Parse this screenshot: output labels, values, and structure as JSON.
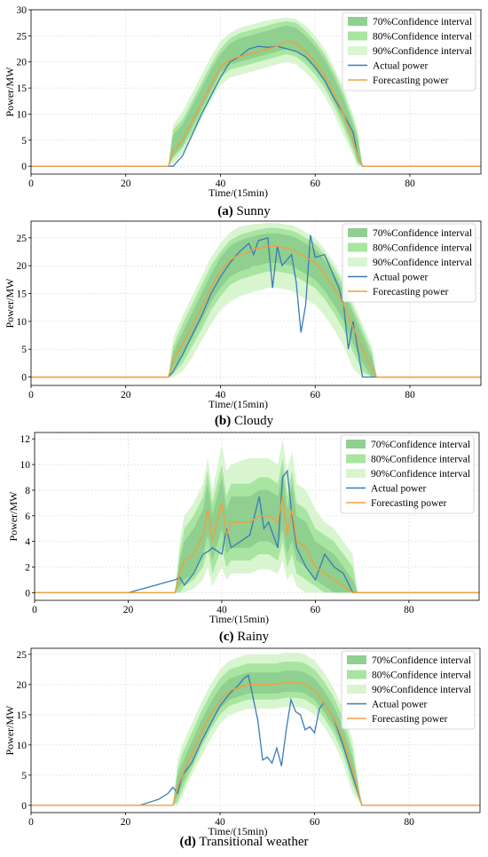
{
  "colors": {
    "ci70": "#8fcf8f",
    "ci80": "#a8e5a0",
    "ci90": "#d8f5d0",
    "actual": "#3b7ab8",
    "forecast": "#f0a040",
    "grid": "#e2e2e2",
    "axis": "#000000"
  },
  "chart_data": [
    {
      "type": "area",
      "caption_letter": "(a)",
      "caption_text": " Sunny",
      "xlabel": "Time/(15min)",
      "ylabel": "Power/MW",
      "xlim": [
        0,
        95
      ],
      "ylim": [
        -1.5,
        30
      ],
      "xticks": [
        0,
        20,
        40,
        60,
        80
      ],
      "yticks": [
        0,
        5,
        10,
        15,
        20,
        25,
        30
      ],
      "grid": true,
      "legend_position": "top-right",
      "legend": [
        "70%Confidence interval",
        "80%Confidence interval",
        "90%Confidence interval",
        "Actual power",
        "Forecasting power"
      ],
      "x": [
        0,
        29,
        30,
        32,
        34,
        36,
        38,
        40,
        42,
        44,
        46,
        48,
        50,
        52,
        54,
        56,
        58,
        60,
        62,
        64,
        66,
        68,
        69,
        70,
        95
      ],
      "forecast": [
        0,
        0,
        3.0,
        5.0,
        8.5,
        12.0,
        15.5,
        19.0,
        20.5,
        21.0,
        21.5,
        22.0,
        22.5,
        23.0,
        24.0,
        23.5,
        22.0,
        20.0,
        17.5,
        14.0,
        10.0,
        5.0,
        2.0,
        0,
        0
      ],
      "actual": [
        0,
        0,
        0,
        2.0,
        6.0,
        10.0,
        13.5,
        17.0,
        20.0,
        21.0,
        22.5,
        23.0,
        22.8,
        23.0,
        22.5,
        22.0,
        21.0,
        19.0,
        16.5,
        13.0,
        10.0,
        6.5,
        2.0,
        0,
        0
      ],
      "ci70_lower": [
        0,
        0,
        2.0,
        4.0,
        7.5,
        11.0,
        14.5,
        18.0,
        19.5,
        20.0,
        20.5,
        21.0,
        21.5,
        22.0,
        22.5,
        22.0,
        20.5,
        18.5,
        16.0,
        12.5,
        8.5,
        4.0,
        1.0,
        0,
        0
      ],
      "ci70_upper": [
        0,
        0,
        6.0,
        8.0,
        11.5,
        15.0,
        18.5,
        21.5,
        23.5,
        24.5,
        25.0,
        25.5,
        26.0,
        26.5,
        27.0,
        26.5,
        25.0,
        23.0,
        20.5,
        17.0,
        13.0,
        8.0,
        5.0,
        0,
        0
      ],
      "ci80_lower": [
        0,
        0,
        1.5,
        3.5,
        6.5,
        10.0,
        13.5,
        17.0,
        18.5,
        19.0,
        19.5,
        20.0,
        20.5,
        21.0,
        21.5,
        21.0,
        19.5,
        17.5,
        15.0,
        11.5,
        7.5,
        3.0,
        0.5,
        0,
        0
      ],
      "ci80_upper": [
        0,
        0,
        7.0,
        9.0,
        12.5,
        16.0,
        19.5,
        22.5,
        24.5,
        25.5,
        26.0,
        26.5,
        27.0,
        27.5,
        27.8,
        27.5,
        26.0,
        24.0,
        21.5,
        18.0,
        14.0,
        9.0,
        6.0,
        0,
        0
      ],
      "ci90_lower": [
        0,
        0,
        0.5,
        2.5,
        5.5,
        9.0,
        12.5,
        15.5,
        17.0,
        17.5,
        18.0,
        18.5,
        19.0,
        19.5,
        20.0,
        19.5,
        18.0,
        16.0,
        13.5,
        10.0,
        6.0,
        2.0,
        0,
        0,
        0
      ],
      "ci90_upper": [
        0,
        0,
        8.0,
        10.5,
        14.0,
        17.5,
        21.0,
        24.0,
        25.5,
        26.5,
        27.0,
        27.5,
        28.0,
        28.3,
        28.5,
        28.2,
        27.0,
        25.0,
        22.5,
        19.0,
        15.0,
        10.0,
        7.0,
        0,
        0
      ]
    },
    {
      "type": "area",
      "caption_letter": "(b)",
      "caption_text": " Cloudy",
      "xlabel": "Time/(15min)",
      "ylabel": "Power/MW",
      "xlim": [
        0,
        95
      ],
      "ylim": [
        -1.5,
        28
      ],
      "xticks": [
        0,
        20,
        40,
        60,
        80
      ],
      "yticks": [
        0,
        5,
        10,
        15,
        20,
        25
      ],
      "grid": true,
      "legend_position": "top-right",
      "legend": [
        "70%Confidence interval",
        "80%Confidence interval",
        "90%Confidence interval",
        "Actual power",
        "Forecasting power"
      ],
      "x": [
        0,
        29,
        30,
        32,
        34,
        36,
        38,
        40,
        42,
        44,
        46,
        47,
        48,
        50,
        51,
        52,
        53,
        55,
        56,
        57,
        58,
        59,
        60,
        62,
        64,
        65,
        66,
        67,
        68,
        70,
        72,
        73,
        95
      ],
      "forecast": [
        0,
        0,
        3.0,
        6.0,
        9.0,
        12.5,
        16.0,
        19.0,
        21.0,
        22.0,
        22.5,
        23.0,
        23.0,
        23.5,
        23.5,
        23.5,
        23.3,
        23.0,
        22.5,
        22.0,
        21.5,
        21.0,
        20.5,
        18.5,
        16.0,
        14.5,
        13.0,
        11.0,
        9.0,
        5.0,
        1.5,
        0,
        0
      ],
      "actual": [
        0,
        0,
        1.0,
        4.0,
        7.5,
        11.0,
        15.0,
        18.0,
        20.5,
        22.5,
        24.0,
        22.0,
        24.5,
        25.0,
        16.0,
        23.5,
        20.0,
        22.0,
        17.0,
        8.0,
        13.0,
        25.5,
        21.5,
        22.0,
        18.0,
        16.0,
        13.0,
        5.0,
        10.0,
        0,
        0,
        0,
        0
      ],
      "ci70_lower": [
        0,
        0,
        1.5,
        4.0,
        7.0,
        10.0,
        13.5,
        16.0,
        18.0,
        19.0,
        19.5,
        20.0,
        20.0,
        20.5,
        20.5,
        20.5,
        20.3,
        20.0,
        19.5,
        19.0,
        18.5,
        18.0,
        17.5,
        15.5,
        13.0,
        11.5,
        10.0,
        8.0,
        6.0,
        2.5,
        0,
        0,
        0
      ],
      "ci70_upper": [
        0,
        0,
        4.5,
        8.0,
        11.5,
        15.0,
        18.5,
        21.5,
        23.5,
        24.5,
        25.0,
        25.3,
        25.5,
        25.8,
        25.8,
        25.8,
        25.6,
        25.3,
        25.0,
        24.5,
        24.0,
        23.5,
        23.0,
        21.0,
        18.5,
        17.0,
        15.5,
        13.5,
        11.5,
        7.5,
        3.5,
        0,
        0
      ],
      "ci80_lower": [
        0,
        0,
        0.5,
        2.5,
        5.5,
        8.5,
        12.0,
        14.5,
        16.5,
        17.5,
        18.0,
        18.3,
        18.5,
        19.0,
        19.0,
        19.0,
        18.8,
        18.5,
        18.0,
        17.5,
        17.0,
        16.5,
        16.0,
        14.0,
        11.5,
        10.0,
        8.5,
        6.5,
        4.5,
        1.0,
        0,
        0,
        0
      ],
      "ci80_upper": [
        0,
        0,
        5.5,
        9.5,
        13.0,
        16.5,
        20.0,
        22.5,
        24.5,
        25.5,
        26.0,
        26.3,
        26.5,
        26.8,
        26.8,
        26.8,
        26.6,
        26.3,
        26.0,
        25.5,
        25.0,
        24.5,
        24.0,
        22.0,
        19.5,
        18.0,
        16.5,
        14.5,
        12.5,
        8.5,
        4.5,
        0,
        0
      ],
      "ci90_lower": [
        0,
        0,
        0,
        1.0,
        3.5,
        6.5,
        9.5,
        12.0,
        13.5,
        14.5,
        15.0,
        15.3,
        15.5,
        16.0,
        16.0,
        16.0,
        15.8,
        15.5,
        15.0,
        14.5,
        14.0,
        13.5,
        13.0,
        11.0,
        8.5,
        7.0,
        5.5,
        3.5,
        1.5,
        0,
        0,
        0,
        0
      ],
      "ci90_upper": [
        0,
        0,
        7.0,
        11.0,
        14.5,
        18.0,
        21.5,
        24.0,
        26.0,
        27.0,
        27.3,
        27.5,
        27.5,
        27.7,
        27.7,
        27.7,
        27.5,
        27.3,
        27.0,
        26.5,
        26.0,
        25.5,
        25.0,
        23.0,
        20.5,
        19.0,
        17.5,
        15.5,
        13.5,
        9.5,
        5.5,
        0,
        0
      ]
    },
    {
      "type": "area",
      "caption_letter": "(c)",
      "caption_text": " Rainy",
      "xlabel": "Time/(15min)",
      "ylabel": "Power/MW",
      "xlim": [
        0,
        95
      ],
      "ylim": [
        -0.6,
        12.5
      ],
      "xticks": [
        0,
        20,
        40,
        60,
        80
      ],
      "yticks": [
        0,
        2,
        4,
        6,
        8,
        10,
        12
      ],
      "grid": true,
      "legend_position": "top-right",
      "legend": [
        "70%Confidence interval",
        "80%Confidence interval",
        "90%Confidence interval",
        "Actual power",
        "Forecasting power"
      ],
      "x": [
        0,
        20,
        22,
        24,
        26,
        28,
        30,
        31,
        32,
        34,
        36,
        37,
        38,
        40,
        41,
        42,
        44,
        46,
        48,
        49,
        50,
        52,
        53,
        54,
        55,
        56,
        58,
        60,
        62,
        64,
        66,
        68,
        69,
        95
      ],
      "forecast": [
        0,
        0,
        0,
        0,
        0,
        0,
        0,
        1.5,
        2.5,
        3.0,
        4.5,
        6.5,
        4.0,
        7.0,
        4.5,
        5.5,
        5.5,
        5.5,
        6.0,
        6.0,
        6.0,
        5.5,
        7.5,
        4.5,
        6.5,
        4.0,
        3.5,
        2.0,
        1.5,
        1.0,
        0.5,
        0,
        0,
        0
      ],
      "actual": [
        0,
        0,
        0.2,
        0.4,
        0.6,
        0.8,
        1.0,
        1.2,
        0.6,
        1.5,
        3.0,
        3.2,
        3.5,
        3.0,
        5.0,
        3.5,
        4.0,
        4.5,
        7.5,
        5.0,
        5.5,
        3.5,
        9.0,
        9.5,
        6.0,
        3.5,
        2.0,
        1.0,
        3.0,
        2.0,
        1.5,
        0,
        0,
        0
      ],
      "ci70_lower": [
        0,
        0,
        0,
        0,
        0,
        0,
        0,
        0.5,
        1.0,
        1.5,
        3.0,
        4.5,
        2.5,
        5.0,
        3.0,
        3.5,
        3.5,
        3.5,
        4.0,
        4.0,
        4.0,
        3.5,
        5.0,
        3.0,
        4.0,
        2.5,
        2.0,
        1.0,
        0.5,
        0,
        0,
        0,
        0,
        0
      ],
      "ci70_upper": [
        0,
        0,
        0,
        0,
        0,
        0,
        0,
        2.5,
        4.0,
        5.0,
        6.5,
        8.5,
        6.0,
        9.0,
        6.5,
        7.5,
        7.5,
        7.5,
        8.0,
        8.0,
        8.0,
        7.5,
        9.5,
        6.5,
        8.5,
        6.0,
        5.5,
        4.0,
        3.5,
        3.0,
        2.0,
        1.0,
        0,
        0
      ],
      "ci80_lower": [
        0,
        0,
        0,
        0,
        0,
        0,
        0,
        0,
        0.5,
        1.0,
        2.0,
        3.5,
        1.5,
        3.5,
        2.0,
        2.5,
        2.5,
        2.5,
        3.0,
        3.0,
        3.0,
        2.5,
        4.0,
        2.0,
        3.0,
        1.5,
        1.0,
        0.5,
        0,
        0,
        0,
        0,
        0,
        0
      ],
      "ci80_upper": [
        0,
        0,
        0,
        0,
        0,
        0,
        0,
        3.0,
        5.0,
        6.0,
        7.5,
        9.5,
        7.0,
        10.0,
        7.5,
        8.5,
        8.5,
        8.5,
        9.0,
        9.0,
        9.0,
        8.5,
        10.5,
        7.5,
        9.5,
        7.0,
        6.5,
        5.0,
        4.5,
        4.0,
        3.0,
        2.0,
        0,
        0
      ],
      "ci90_lower": [
        0,
        0,
        0,
        0,
        0,
        0,
        0,
        0,
        0,
        0.3,
        1.0,
        2.0,
        0.5,
        2.0,
        1.0,
        1.5,
        1.5,
        1.5,
        1.8,
        1.8,
        1.8,
        1.5,
        2.5,
        1.0,
        1.5,
        0.5,
        0,
        0,
        0,
        0,
        0,
        0,
        0,
        0
      ],
      "ci90_upper": [
        0,
        0,
        0,
        0,
        0,
        0,
        0,
        4.0,
        6.0,
        7.0,
        8.5,
        10.5,
        8.0,
        11.5,
        9.5,
        10.0,
        10.3,
        10.5,
        10.5,
        10.5,
        10.5,
        10.0,
        12.0,
        9.5,
        11.0,
        8.5,
        8.0,
        6.5,
        5.5,
        5.0,
        4.0,
        3.0,
        0,
        0
      ]
    },
    {
      "type": "area",
      "caption_letter": "(d)",
      "caption_text": " Transitional weather",
      "xlabel": "Time/(15min)",
      "ylabel": "Power/MW",
      "xlim": [
        0,
        95
      ],
      "ylim": [
        -1.2,
        26
      ],
      "xticks": [
        0,
        20,
        40,
        60,
        80
      ],
      "yticks": [
        0,
        5,
        10,
        15,
        20,
        25
      ],
      "grid": true,
      "legend_position": "top-right",
      "legend": [
        "70%Confidence interval",
        "80%Confidence interval",
        "90%Confidence interval",
        "Actual power",
        "Forecasting power"
      ],
      "x": [
        0,
        23,
        25,
        27,
        29,
        30,
        31,
        32,
        34,
        36,
        38,
        40,
        42,
        44,
        45,
        46,
        48,
        49,
        50,
        51,
        52,
        53,
        54,
        55,
        56,
        57,
        58,
        59,
        60,
        61,
        62,
        64,
        66,
        68,
        70,
        95
      ],
      "forecast": [
        0,
        0,
        0,
        0,
        0,
        0,
        3.0,
        5.0,
        8.5,
        12.0,
        15.0,
        17.5,
        19.0,
        19.5,
        19.8,
        20.0,
        20.0,
        20.0,
        20.0,
        20.0,
        20.0,
        20.2,
        20.3,
        20.3,
        20.3,
        20.2,
        20.0,
        19.5,
        19.0,
        18.0,
        17.0,
        14.5,
        11.0,
        6.0,
        0,
        0
      ],
      "actual": [
        0,
        0,
        0.5,
        1.0,
        2.0,
        3.0,
        2.0,
        5.0,
        7.0,
        10.5,
        13.5,
        16.5,
        18.5,
        20.0,
        21.0,
        21.5,
        14.0,
        7.5,
        8.0,
        7.0,
        9.5,
        6.5,
        12.5,
        17.5,
        15.5,
        15.0,
        12.5,
        13.0,
        12.0,
        16.0,
        17.0,
        14.5,
        10.0,
        5.0,
        0,
        0
      ],
      "ci70_lower": [
        0,
        0,
        0,
        0,
        0,
        0,
        1.5,
        3.5,
        7.0,
        10.5,
        13.5,
        16.0,
        17.5,
        18.0,
        18.3,
        18.5,
        18.5,
        18.5,
        18.5,
        18.5,
        18.5,
        18.7,
        18.8,
        18.8,
        18.8,
        18.7,
        18.5,
        18.0,
        17.5,
        16.5,
        15.5,
        13.0,
        9.5,
        4.5,
        0,
        0
      ],
      "ci70_upper": [
        0,
        0,
        0,
        0,
        0,
        0,
        5.0,
        7.0,
        10.5,
        14.0,
        17.0,
        19.5,
        21.0,
        21.5,
        21.8,
        22.0,
        22.0,
        22.0,
        22.0,
        22.0,
        22.0,
        22.2,
        22.3,
        22.3,
        22.3,
        22.2,
        22.0,
        21.5,
        21.0,
        20.0,
        19.0,
        16.5,
        13.0,
        8.0,
        0,
        0
      ],
      "ci80_lower": [
        0,
        0,
        0,
        0,
        0,
        0,
        0.5,
        2.5,
        6.0,
        9.5,
        12.5,
        15.0,
        16.5,
        17.0,
        17.3,
        17.5,
        17.5,
        17.5,
        17.5,
        17.5,
        17.5,
        17.7,
        17.8,
        17.8,
        17.8,
        17.7,
        17.5,
        17.0,
        16.5,
        15.5,
        14.5,
        12.0,
        8.5,
        3.5,
        0,
        0
      ],
      "ci80_upper": [
        0,
        0,
        0,
        0,
        0,
        0,
        6.0,
        8.5,
        12.0,
        15.5,
        18.5,
        21.0,
        22.5,
        23.0,
        23.3,
        23.5,
        23.5,
        23.5,
        23.5,
        23.5,
        23.5,
        23.7,
        23.8,
        23.8,
        23.8,
        23.7,
        23.5,
        23.0,
        22.5,
        21.5,
        20.5,
        18.0,
        14.5,
        9.5,
        0,
        0
      ],
      "ci90_lower": [
        0,
        0,
        0,
        0,
        0,
        0,
        0,
        1.5,
        5.0,
        8.0,
        11.0,
        13.5,
        15.0,
        15.5,
        15.8,
        16.0,
        16.0,
        16.0,
        16.0,
        16.0,
        16.0,
        16.2,
        16.3,
        16.3,
        16.3,
        16.2,
        16.0,
        15.5,
        15.0,
        14.0,
        13.0,
        10.5,
        7.0,
        2.0,
        0,
        0
      ],
      "ci90_upper": [
        0,
        0,
        0,
        0,
        0,
        0,
        7.5,
        10.0,
        13.5,
        17.0,
        20.0,
        22.5,
        24.0,
        24.5,
        24.8,
        25.0,
        25.0,
        25.0,
        25.0,
        25.0,
        25.0,
        25.2,
        25.3,
        25.3,
        25.3,
        25.2,
        25.0,
        24.5,
        24.0,
        23.0,
        22.0,
        19.5,
        16.0,
        11.0,
        0,
        0
      ]
    }
  ]
}
